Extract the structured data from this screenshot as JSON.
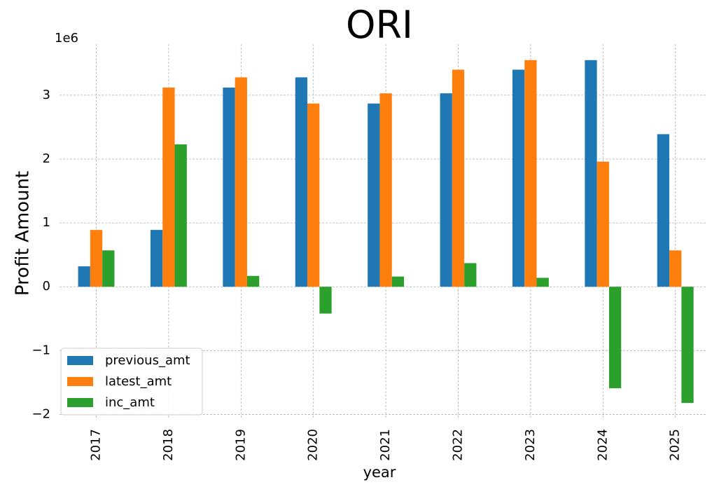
{
  "chart_data": {
    "type": "bar",
    "title": "ORI",
    "xlabel": "year",
    "ylabel": "Profit Amount",
    "y_offset_label": "1e6",
    "categories": [
      "2017",
      "2018",
      "2019",
      "2020",
      "2021",
      "2022",
      "2023",
      "2024",
      "2025"
    ],
    "series": [
      {
        "name": "previous_amt",
        "color": "#1f77b4",
        "values": [
          320000,
          890000,
          3120000,
          3280000,
          2870000,
          3030000,
          3400000,
          3550000,
          2390000
        ]
      },
      {
        "name": "latest_amt",
        "color": "#ff7f0e",
        "values": [
          890000,
          3120000,
          3280000,
          2870000,
          3030000,
          3400000,
          3550000,
          1960000,
          570000
        ]
      },
      {
        "name": "inc_amt",
        "color": "#2ca02c",
        "values": [
          570000,
          2230000,
          170000,
          -420000,
          160000,
          370000,
          140000,
          -1590000,
          -1820000
        ]
      }
    ],
    "ylim": [
      -2.05,
      3.8
    ],
    "yscale": 1000000,
    "yticks": [
      -2,
      -1,
      0,
      1,
      2,
      3
    ],
    "ytick_labels": [
      "−2",
      "−1",
      "0",
      "1",
      "2",
      "3"
    ],
    "grid": true,
    "legend_position": "lower-left"
  }
}
